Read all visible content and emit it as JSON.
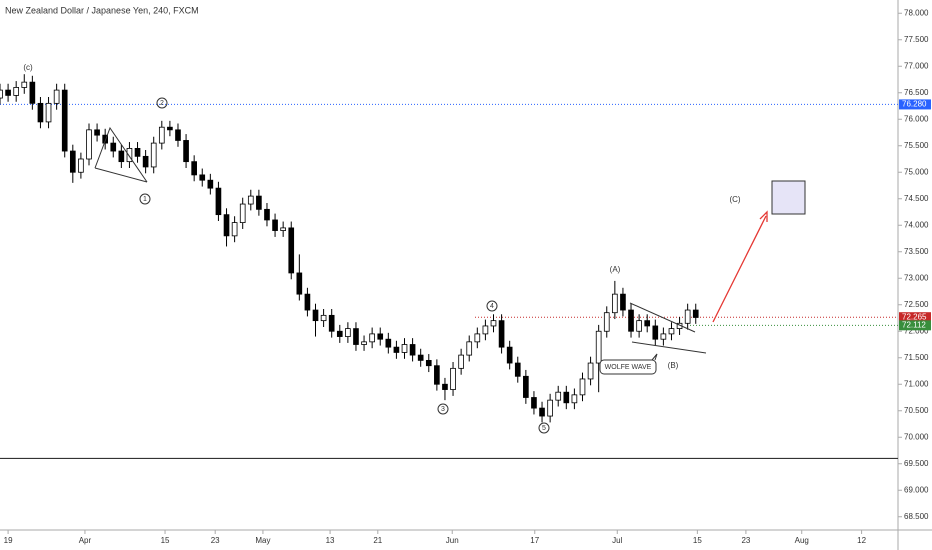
{
  "chart_data": {
    "type": "candlestick",
    "title": "New Zealand Dollar / Japanese Yen, 240, FXCM",
    "x": [
      0,
      1,
      2,
      3,
      4,
      5,
      6,
      7,
      8,
      9,
      10,
      11,
      12,
      13,
      14,
      15,
      16,
      17,
      18,
      19,
      20,
      21,
      22,
      23,
      24,
      25,
      26,
      27,
      28,
      29,
      30,
      31,
      32,
      33,
      34,
      35,
      36,
      37,
      38,
      39,
      40,
      41,
      42,
      43,
      44,
      45,
      46,
      47,
      48,
      49,
      50,
      51,
      52,
      53,
      54,
      55,
      56,
      57,
      58,
      59,
      60,
      61,
      62,
      63,
      64,
      65,
      66,
      67,
      68,
      69,
      70,
      71,
      72,
      73,
      74,
      75,
      76,
      77,
      78,
      79,
      80,
      81,
      82,
      83,
      84,
      85,
      86
    ],
    "open": [
      76.4,
      76.55,
      76.45,
      76.6,
      76.7,
      76.3,
      75.95,
      76.3,
      76.55,
      75.4,
      75.0,
      75.25,
      75.8,
      75.7,
      75.55,
      75.4,
      75.2,
      75.45,
      75.3,
      75.1,
      75.55,
      75.85,
      75.8,
      75.6,
      75.2,
      74.95,
      74.85,
      74.7,
      74.2,
      73.8,
      74.05,
      74.4,
      74.55,
      74.3,
      74.1,
      73.9,
      73.95,
      73.1,
      72.7,
      72.4,
      72.2,
      72.3,
      72.0,
      71.9,
      72.05,
      71.75,
      71.8,
      71.95,
      71.85,
      71.7,
      71.6,
      71.75,
      71.55,
      71.45,
      71.35,
      71.0,
      70.9,
      71.3,
      71.55,
      71.8,
      71.95,
      72.1,
      72.2,
      71.7,
      71.4,
      71.15,
      70.75,
      70.55,
      70.4,
      70.7,
      70.85,
      70.65,
      70.8,
      71.1,
      71.4,
      72.0,
      72.35,
      72.7,
      72.4,
      72.0,
      72.2,
      72.1,
      71.85,
      71.95,
      72.05,
      72.15,
      72.4
    ],
    "high": [
      76.67,
      76.67,
      76.72,
      76.85,
      76.82,
      76.42,
      76.42,
      76.67,
      76.67,
      75.52,
      75.37,
      75.92,
      75.92,
      75.82,
      75.67,
      75.52,
      75.57,
      75.57,
      75.42,
      75.67,
      75.97,
      75.97,
      75.92,
      75.72,
      75.32,
      75.07,
      74.97,
      74.82,
      74.32,
      74.17,
      74.52,
      74.67,
      74.67,
      74.42,
      74.22,
      74.07,
      74.07,
      73.45,
      72.82,
      72.52,
      72.42,
      72.42,
      72.12,
      72.17,
      72.17,
      71.92,
      72.07,
      72.07,
      71.97,
      71.82,
      71.87,
      71.87,
      71.67,
      71.57,
      71.47,
      71.12,
      71.42,
      71.67,
      71.92,
      72.07,
      72.22,
      72.32,
      72.32,
      71.82,
      71.52,
      71.27,
      70.87,
      70.67,
      70.82,
      70.97,
      70.97,
      70.92,
      71.22,
      71.52,
      72.12,
      72.47,
      72.95,
      72.82,
      72.52,
      72.32,
      72.32,
      72.22,
      72.07,
      72.17,
      72.27,
      72.52,
      72.52
    ],
    "low": [
      76.28,
      76.33,
      76.33,
      76.48,
      76.18,
      75.83,
      75.83,
      76.18,
      75.28,
      74.8,
      74.88,
      75.13,
      75.58,
      75.43,
      75.28,
      75.08,
      75.08,
      75.18,
      74.98,
      74.98,
      75.43,
      75.68,
      75.48,
      75.08,
      74.83,
      74.73,
      74.58,
      74.08,
      73.6,
      73.68,
      73.93,
      74.28,
      74.18,
      73.98,
      73.78,
      73.78,
      72.98,
      72.58,
      72.28,
      71.9,
      72.08,
      71.88,
      71.78,
      71.78,
      71.63,
      71.63,
      71.68,
      71.73,
      71.58,
      71.48,
      71.48,
      71.43,
      71.33,
      71.23,
      70.88,
      70.7,
      70.78,
      71.18,
      71.43,
      71.68,
      71.83,
      71.98,
      71.58,
      71.28,
      71.03,
      70.63,
      70.43,
      70.28,
      70.28,
      70.58,
      70.53,
      70.53,
      70.68,
      70.98,
      70.85,
      71.88,
      72.23,
      72.28,
      71.88,
      71.88,
      71.98,
      71.73,
      71.73,
      71.83,
      71.93,
      72.03,
      72.14
    ],
    "close": [
      76.55,
      76.45,
      76.6,
      76.7,
      76.3,
      75.95,
      76.3,
      76.55,
      75.4,
      75.0,
      75.25,
      75.8,
      75.7,
      75.55,
      75.4,
      75.2,
      75.45,
      75.3,
      75.1,
      75.55,
      75.85,
      75.8,
      75.6,
      75.2,
      74.95,
      74.85,
      74.7,
      74.2,
      73.8,
      74.05,
      74.4,
      74.55,
      74.3,
      74.1,
      73.9,
      73.95,
      73.1,
      72.7,
      72.4,
      72.2,
      72.3,
      72.0,
      71.9,
      72.05,
      71.75,
      71.8,
      71.95,
      71.85,
      71.7,
      71.6,
      71.75,
      71.55,
      71.45,
      71.35,
      71.0,
      70.9,
      71.3,
      71.55,
      71.8,
      71.95,
      72.1,
      72.2,
      71.7,
      71.4,
      71.15,
      70.75,
      70.55,
      70.4,
      70.7,
      70.85,
      70.65,
      70.8,
      71.1,
      71.4,
      72.0,
      72.35,
      72.7,
      72.4,
      72.0,
      72.2,
      72.1,
      71.85,
      71.95,
      72.05,
      72.15,
      72.4,
      72.26
    ],
    "xlim": [
      0,
      111
    ],
    "xticks": [
      {
        "value": 1,
        "label": "19"
      },
      {
        "value": 10.5,
        "label": "Apr"
      },
      {
        "value": 20.4,
        "label": "15"
      },
      {
        "value": 26.6,
        "label": "23"
      },
      {
        "value": 32.5,
        "label": "May"
      },
      {
        "value": 40.8,
        "label": "13"
      },
      {
        "value": 46.7,
        "label": "21"
      },
      {
        "value": 55.9,
        "label": "Jun"
      },
      {
        "value": 66.1,
        "label": "17"
      },
      {
        "value": 76.3,
        "label": "Jul"
      },
      {
        "value": 86.2,
        "label": "15"
      },
      {
        "value": 92.2,
        "label": "23"
      },
      {
        "value": 99.1,
        "label": "Aug"
      },
      {
        "value": 106.5,
        "label": "12"
      }
    ],
    "ylim": [
      68.25,
      78.25
    ],
    "yticks": [
      {
        "value": 68.5,
        "label": "68.500"
      },
      {
        "value": 69,
        "label": "69.000"
      },
      {
        "value": 69.5,
        "label": "69.500"
      },
      {
        "value": 70,
        "label": "70.000"
      },
      {
        "value": 70.5,
        "label": "70.500"
      },
      {
        "value": 71,
        "label": "71.000"
      },
      {
        "value": 71.5,
        "label": "71.500"
      },
      {
        "value": 72,
        "label": "72.000"
      },
      {
        "value": 72.5,
        "label": "72.500"
      },
      {
        "value": 73,
        "label": "73.000"
      },
      {
        "value": 73.5,
        "label": "73.500"
      },
      {
        "value": 74,
        "label": "74.000"
      },
      {
        "value": 74.5,
        "label": "74.500"
      },
      {
        "value": 75,
        "label": "75.000"
      },
      {
        "value": 75.5,
        "label": "75.500"
      },
      {
        "value": 76,
        "label": "76.000"
      },
      {
        "value": 76.5,
        "label": "76.500"
      },
      {
        "value": 77,
        "label": "77.000"
      },
      {
        "value": 77.5,
        "label": "77.500"
      },
      {
        "value": 78,
        "label": "78.000"
      }
    ],
    "levels": [
      {
        "value": 76.28,
        "label": "76.280",
        "color": "#2962ff"
      },
      {
        "value": 72.265,
        "label": "72.265",
        "color": "#c62828"
      },
      {
        "value": 72.112,
        "label": "72.112",
        "color": "#388e3c"
      }
    ],
    "support_level": 69.6,
    "up_color": "#ffffff",
    "down_color": "#000000",
    "annotations": [
      "(c)",
      "2",
      "1",
      "3",
      "4",
      "5",
      "(A)",
      "(B)",
      "(C)",
      "WOLFE WAVE"
    ]
  }
}
